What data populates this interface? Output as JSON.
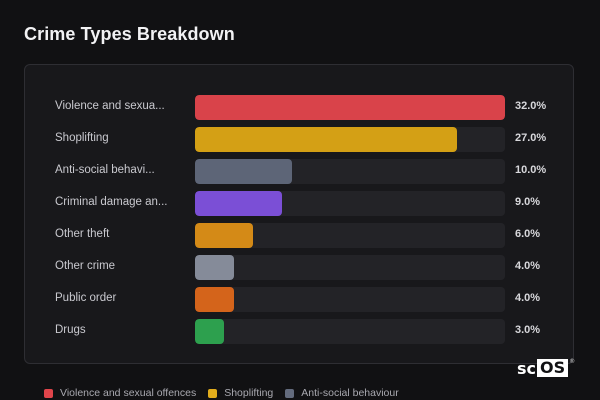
{
  "title": "Crime Types Breakdown",
  "colors": {
    "background": "#111113",
    "card": "#18181b",
    "track": "#232327"
  },
  "chart_data": {
    "type": "bar",
    "orientation": "horizontal",
    "xlim": [
      0,
      32
    ],
    "categories": [
      "Violence and sexua...",
      "Shoplifting",
      "Anti-social behavi...",
      "Criminal damage an...",
      "Other theft",
      "Other crime",
      "Public order",
      "Drugs"
    ],
    "values": [
      32.0,
      27.0,
      10.0,
      9.0,
      6.0,
      4.0,
      4.0,
      3.0
    ],
    "value_labels": [
      "32.0%",
      "27.0%",
      "10.0%",
      "9.0%",
      "6.0%",
      "4.0%",
      "4.0%",
      "3.0%"
    ],
    "bar_colors": [
      "#d9434a",
      "#d4a015",
      "#5d6577",
      "#7b4fd6",
      "#d48a17",
      "#858b99",
      "#d4641b",
      "#2da04e"
    ]
  },
  "legend": [
    {
      "label": "Violence and sexual offences",
      "color": "#e0454b"
    },
    {
      "label": "Shoplifting",
      "color": "#e2ad1c"
    },
    {
      "label": "Anti-social behaviour",
      "color": "#636b7d"
    }
  ],
  "brand": {
    "prefix": "sc",
    "boxed": "OS",
    "mark": "®"
  }
}
